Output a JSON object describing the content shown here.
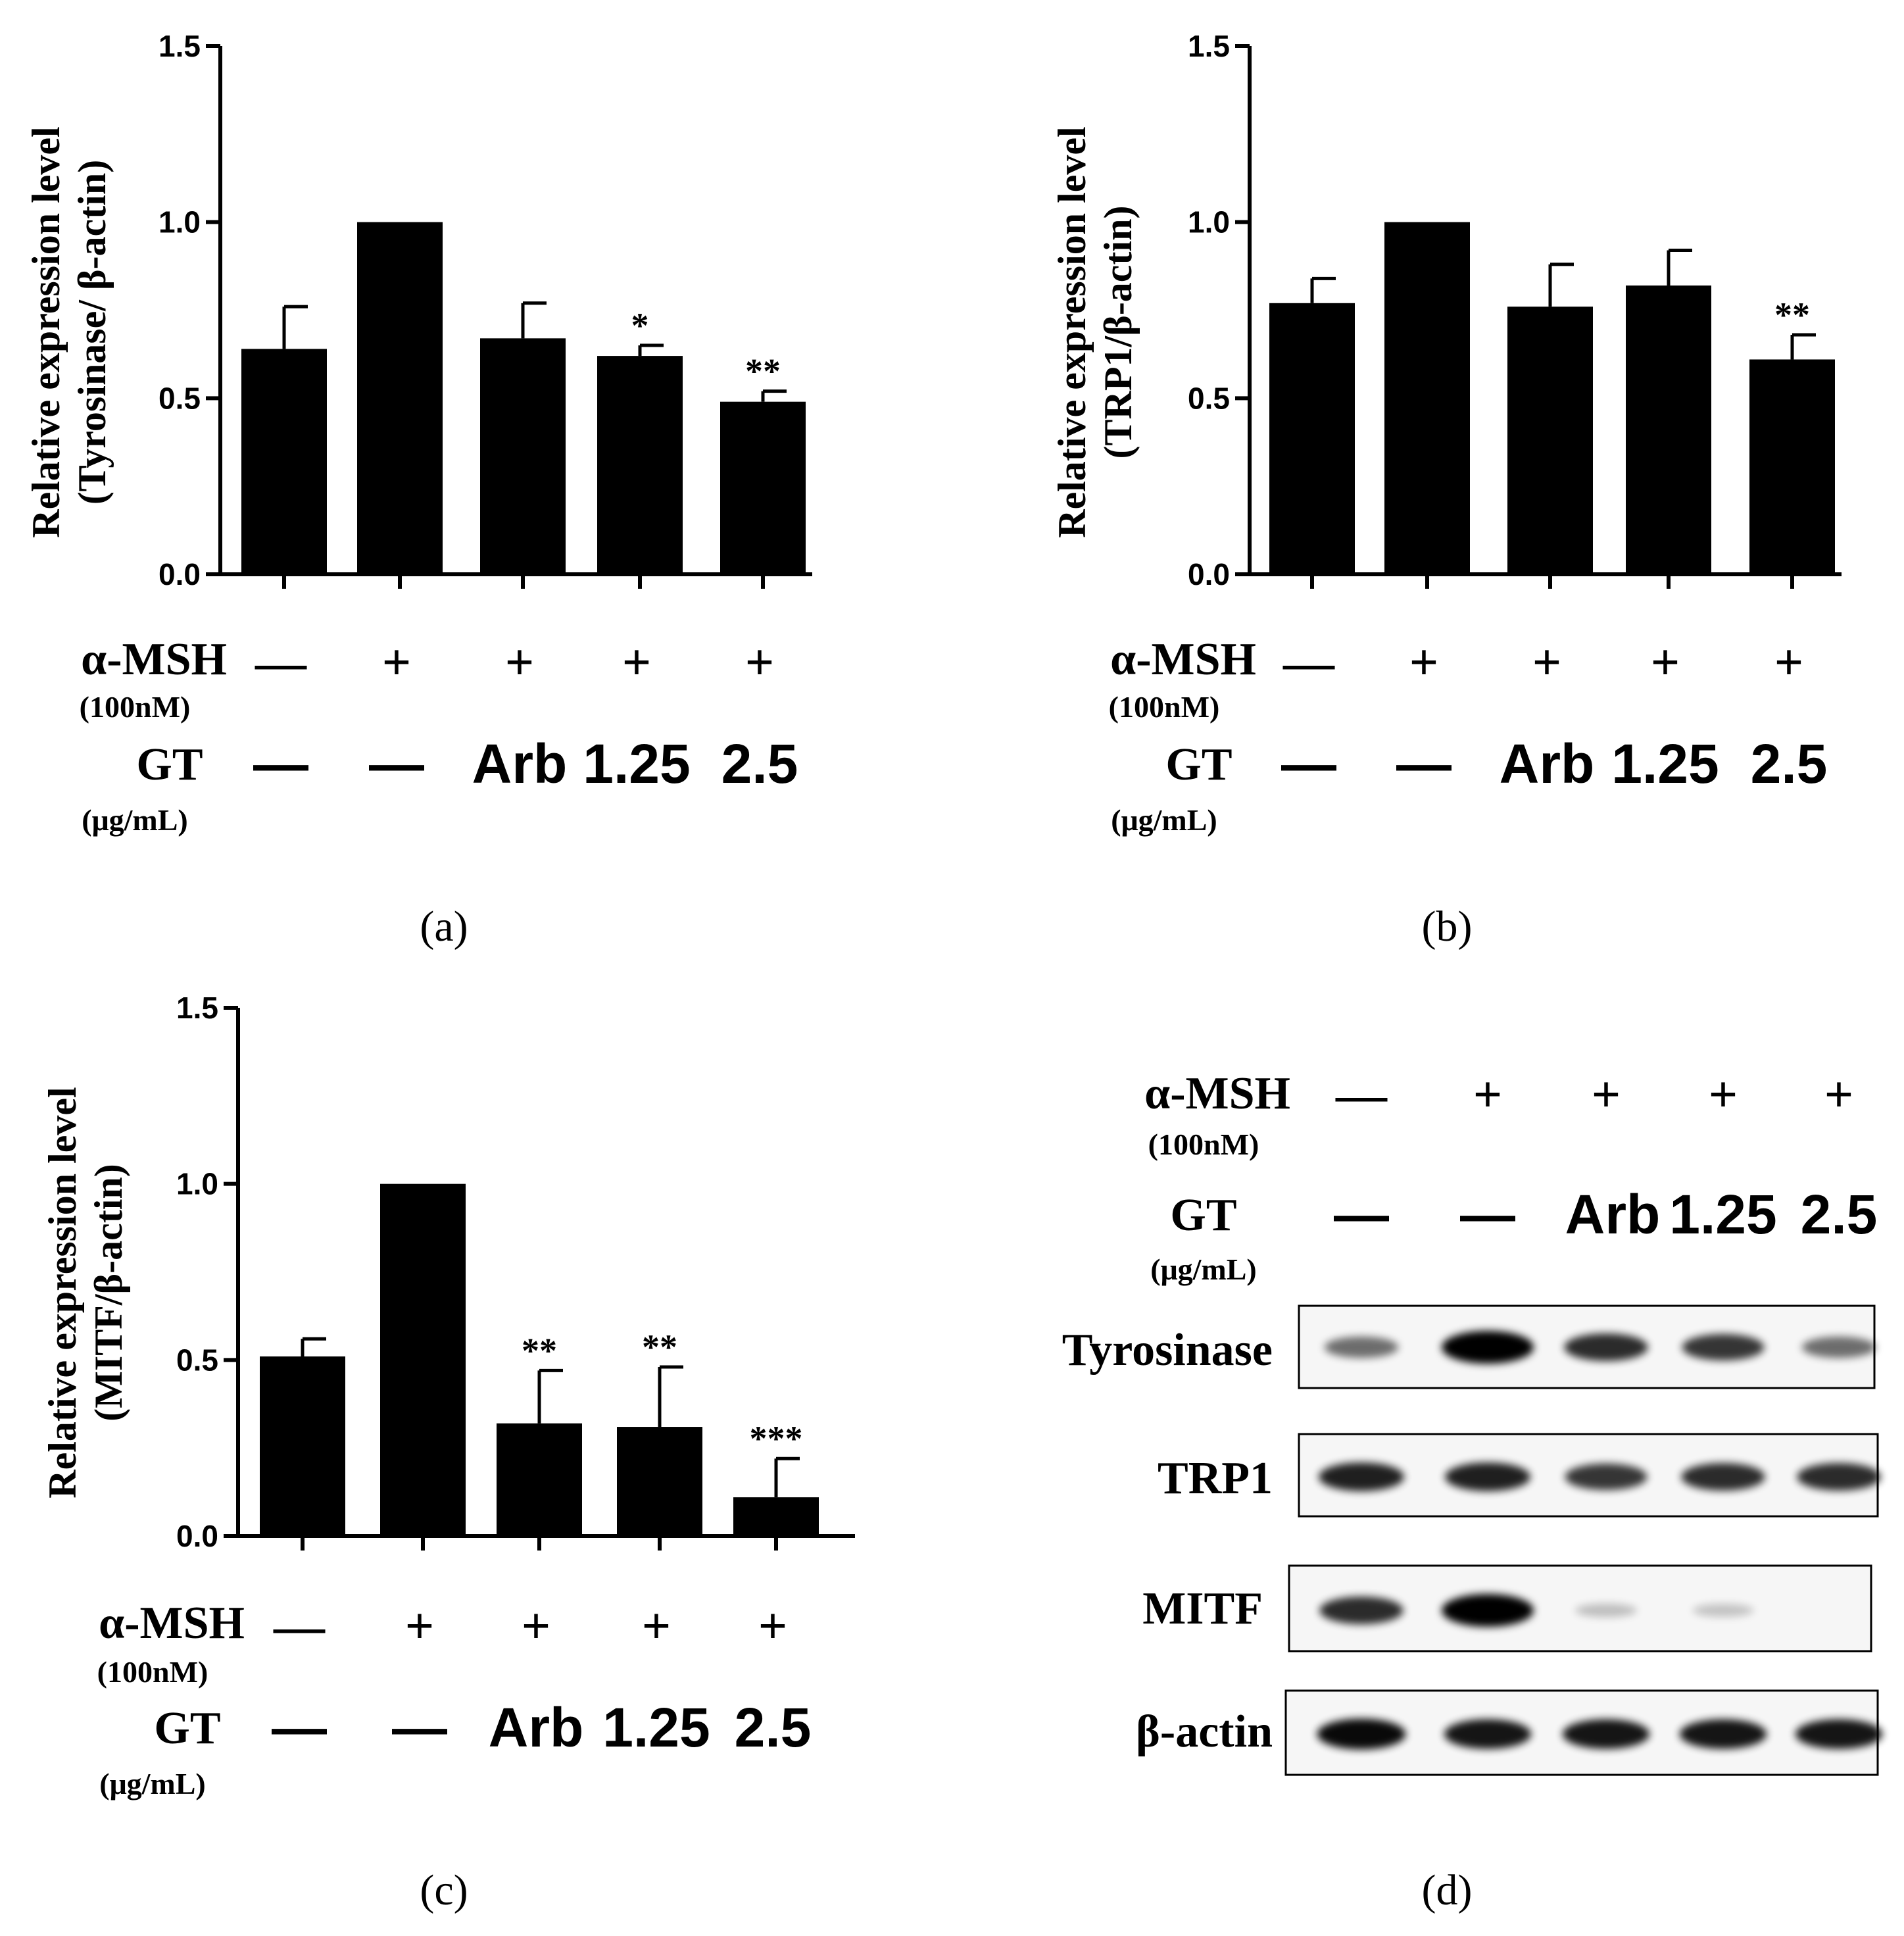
{
  "chart_data": [
    {
      "panel": "(a)",
      "type": "bar",
      "ylabel": [
        "Relative expression level",
        "(Tyrosinase/ β-actin)"
      ],
      "ylim": [
        0,
        1.5
      ],
      "yticks": [
        "0.0",
        "0.5",
        "1.0",
        "1.5"
      ],
      "values": [
        0.64,
        1.0,
        0.67,
        0.62,
        0.49
      ],
      "errors": [
        0.12,
        0,
        0.1,
        0.03,
        0.03
      ],
      "significance": [
        "",
        "",
        "",
        "*",
        "**"
      ],
      "msh_row": {
        "label": "α-MSH",
        "sublabel": "(100nM)",
        "values": [
          "—",
          "+",
          "+",
          "+",
          "+"
        ]
      },
      "gt_row": {
        "label": "GT",
        "sublabel": "(μg/mL)",
        "values": [
          "—",
          "—",
          "Arb",
          "1.25",
          "2.5"
        ]
      }
    },
    {
      "panel": "(b)",
      "type": "bar",
      "ylabel": [
        "Relative expression level",
        "(TRP1/β-actin)"
      ],
      "ylim": [
        0,
        1.5
      ],
      "yticks": [
        "0.0",
        "0.5",
        "1.0",
        "1.5"
      ],
      "values": [
        0.77,
        1.0,
        0.76,
        0.82,
        0.61
      ],
      "errors": [
        0.07,
        0,
        0.12,
        0.1,
        0.07
      ],
      "significance": [
        "",
        "",
        "",
        "",
        "**"
      ],
      "msh_row": {
        "label": "α-MSH",
        "sublabel": "(100nM)",
        "values": [
          "—",
          "+",
          "+",
          "+",
          "+"
        ]
      },
      "gt_row": {
        "label": "GT",
        "sublabel": "(μg/mL)",
        "values": [
          "—",
          "—",
          "Arb",
          "1.25",
          "2.5"
        ]
      }
    },
    {
      "panel": "(c)",
      "type": "bar",
      "ylabel": [
        "Relative expression level",
        "(MITF/β-actin)"
      ],
      "ylim": [
        0,
        1.5
      ],
      "yticks": [
        "0.0",
        "0.5",
        "1.0",
        "1.5"
      ],
      "values": [
        0.51,
        1.0,
        0.32,
        0.31,
        0.11
      ],
      "errors": [
        0.05,
        0,
        0.15,
        0.17,
        0.11
      ],
      "significance": [
        "",
        "",
        "**",
        "**",
        "***"
      ],
      "msh_row": {
        "label": "α-MSH",
        "sublabel": "(100nM)",
        "values": [
          "—",
          "+",
          "+",
          "+",
          "+"
        ]
      },
      "gt_row": {
        "label": "GT",
        "sublabel": "(μg/mL)",
        "values": [
          "—",
          "—",
          "Arb",
          "1.25",
          "2.5"
        ]
      }
    }
  ],
  "blot": {
    "panel": "(d)",
    "msh_row": {
      "label": "α-MSH",
      "sublabel": "(100nM)",
      "values": [
        "—",
        "+",
        "+",
        "+",
        "+"
      ]
    },
    "gt_row": {
      "label": "GT",
      "sublabel": "(μg/mL)",
      "values": [
        "—",
        "—",
        "Arb",
        "1.25",
        "2.5"
      ]
    },
    "rows": [
      {
        "label": "Tyrosinase",
        "intensity": [
          0.45,
          1.0,
          0.75,
          0.7,
          0.45
        ]
      },
      {
        "label": "TRP1",
        "intensity": [
          0.8,
          0.8,
          0.7,
          0.75,
          0.75
        ]
      },
      {
        "label": "MITF",
        "intensity": [
          0.75,
          1.0,
          0.08,
          0.06,
          0.0
        ]
      },
      {
        "label": "β-actin",
        "intensity": [
          0.9,
          0.85,
          0.85,
          0.85,
          0.85
        ]
      }
    ]
  }
}
